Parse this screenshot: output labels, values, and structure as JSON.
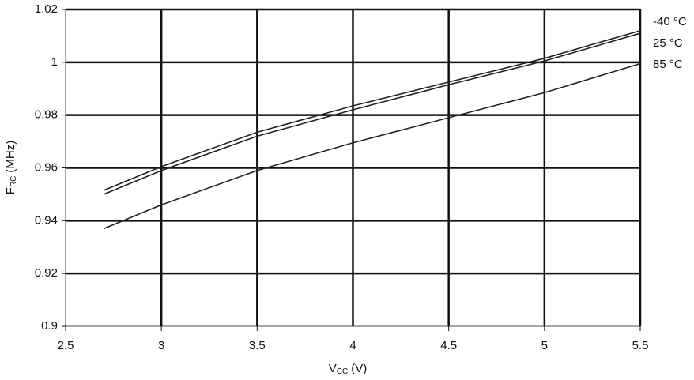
{
  "chart_data": {
    "type": "line",
    "xlabel": {
      "main": "V",
      "sub": "CC",
      "unit": "(V)"
    },
    "ylabel": {
      "main": "F",
      "sub": "RC",
      "unit": "(MHz)"
    },
    "x": [
      2.7,
      3.0,
      3.5,
      4.0,
      4.5,
      5.0,
      5.5
    ],
    "series": [
      {
        "name": "-40 °C",
        "color": "#222222",
        "values": [
          0.9515,
          0.9605,
          0.9735,
          0.9835,
          0.9925,
          1.0015,
          1.012
        ]
      },
      {
        "name": "25 °C",
        "color": "#222222",
        "values": [
          0.95,
          0.959,
          0.972,
          0.982,
          0.9915,
          1.0005,
          1.011
        ]
      },
      {
        "name": "85 °C",
        "color": "#222222",
        "values": [
          0.937,
          0.946,
          0.959,
          0.9695,
          0.979,
          0.9885,
          0.9995
        ]
      }
    ],
    "xlim": [
      2.5,
      5.5
    ],
    "xticks": [
      2.5,
      3,
      3.5,
      4,
      4.5,
      5,
      5.5
    ],
    "ylim": [
      0.9,
      1.02
    ],
    "yticks": [
      0.9,
      0.92,
      0.94,
      0.96,
      0.98,
      1,
      1.02
    ],
    "grid": true
  }
}
